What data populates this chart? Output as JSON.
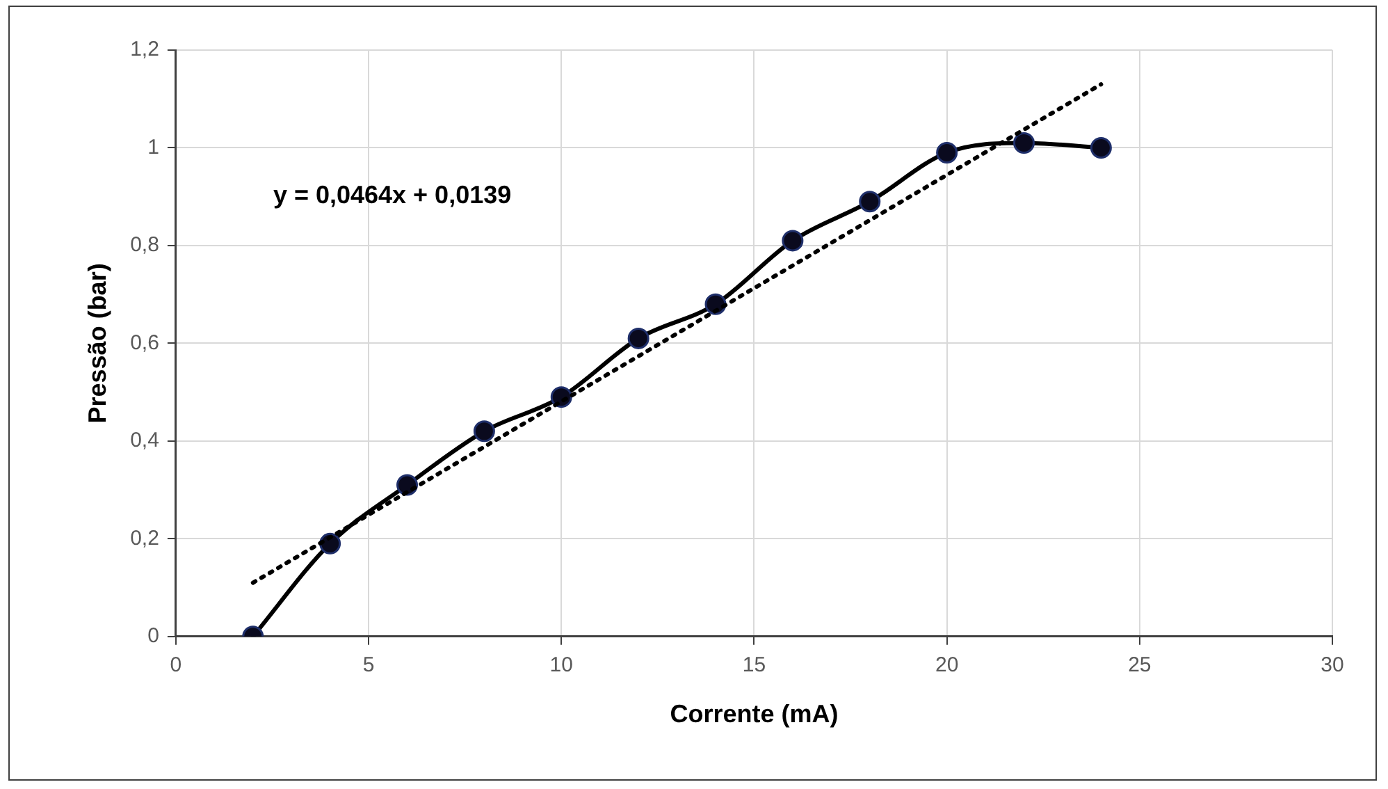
{
  "chart_data": {
    "type": "line",
    "xlabel": "Corrente (mA)",
    "ylabel": "Pressão (bar)",
    "x": [
      2,
      4,
      6,
      8,
      10,
      12,
      14,
      16,
      18,
      20,
      22,
      24
    ],
    "series": [
      {
        "color": "#000000",
        "values": [
          0,
          0.19,
          0.31,
          0.42,
          0.49,
          0.61,
          0.68,
          0.81,
          0.89,
          0.99,
          1.01,
          1.0
        ]
      },
      {
        "type": "line",
        "x": [
          2,
          24
        ],
        "values": [
          0.11,
          1.13
        ],
        "color": "#000000",
        "line_style": "dotted",
        "marker": "none"
      }
    ],
    "annotations": [
      "y = 0,0464x + 0,0139"
    ],
    "xlim": [
      0,
      30
    ],
    "xticks": [
      0,
      5,
      10,
      15,
      20,
      25,
      30
    ],
    "ylim": [
      0,
      1.2
    ],
    "yticks": [
      0,
      {
        "value": 0.2,
        "label": "0,2"
      },
      {
        "value": 0.4,
        "label": "0,4"
      },
      {
        "value": 0.6,
        "label": "0,6"
      },
      {
        "value": 0.8,
        "label": "0,8"
      },
      1,
      {
        "value": 1.2,
        "label": "1,2"
      }
    ],
    "grid": true,
    "legend": false,
    "marker": "circle",
    "line_style": "solid"
  }
}
